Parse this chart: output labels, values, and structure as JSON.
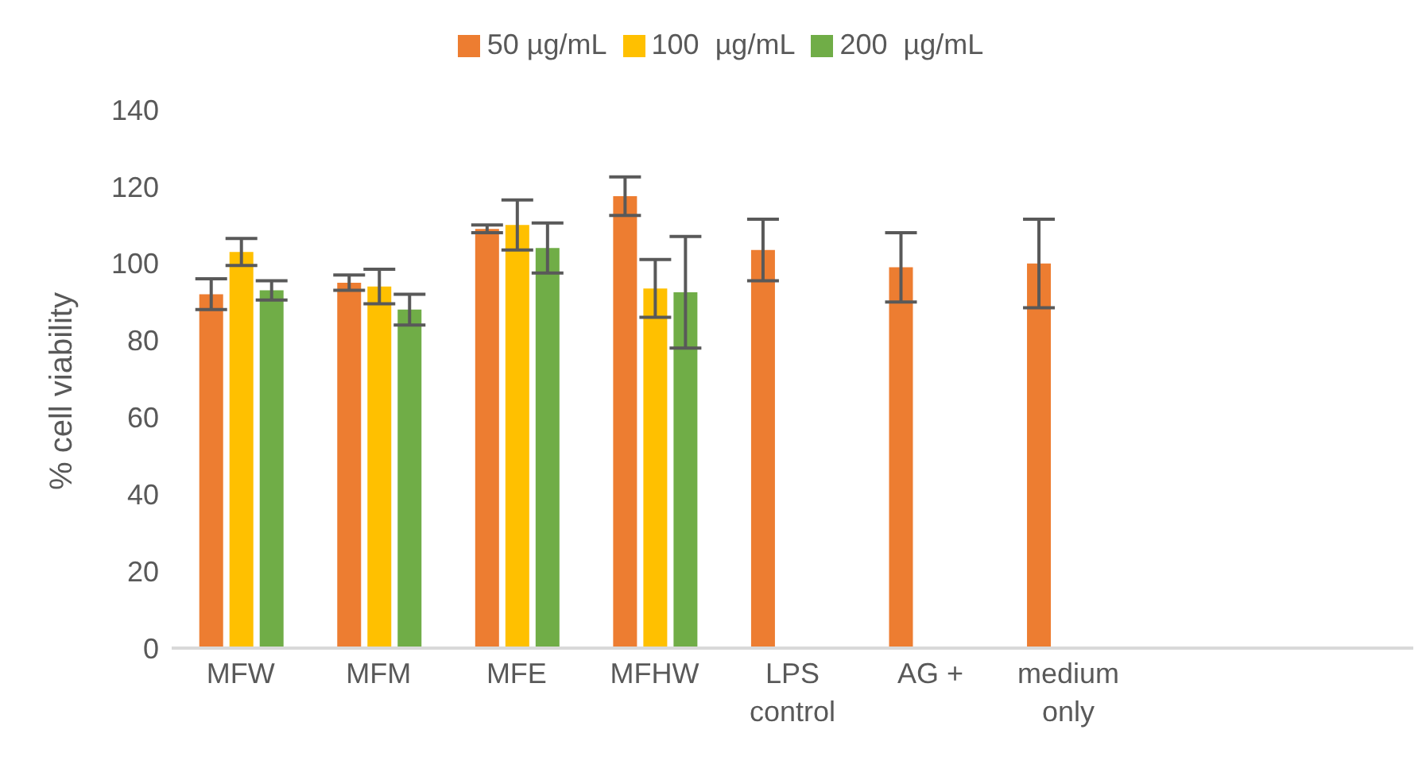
{
  "chart_data": {
    "type": "bar",
    "ylabel": "% cell viability",
    "categories": [
      "MFW",
      "MFM",
      "MFE",
      "MFHW",
      "LPS control",
      "AG +",
      "medium only",
      null,
      null
    ],
    "series": [
      {
        "name": "50 µg/mL",
        "color": "#ed7d31",
        "values": [
          92,
          95,
          109,
          117.5,
          103.5,
          99,
          100,
          null,
          null
        ],
        "errors": [
          4,
          2,
          1,
          5,
          8,
          9,
          11.5,
          null,
          null
        ]
      },
      {
        "name": "100  µg/mL",
        "color": "#ffc000",
        "values": [
          103,
          94,
          110,
          93.5,
          null,
          null,
          null,
          null,
          null
        ],
        "errors": [
          3.5,
          4.5,
          6.5,
          7.5,
          null,
          null,
          null,
          null,
          null
        ]
      },
      {
        "name": "200  µg/mL",
        "color": "#70ad47",
        "values": [
          93,
          88,
          104,
          92.5,
          null,
          null,
          null,
          null,
          null
        ],
        "errors": [
          2.5,
          4,
          6.5,
          14.5,
          null,
          null,
          null,
          null,
          null
        ]
      }
    ],
    "ylim": [
      0,
      140
    ],
    "yticks": [
      0,
      20,
      40,
      60,
      80,
      100,
      120,
      140
    ],
    "grid": false,
    "legend": "top"
  }
}
